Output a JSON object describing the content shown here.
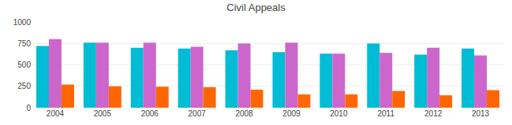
{
  "chart_data": {
    "type": "bar",
    "title": "Civil Appeals",
    "categories": [
      "2004",
      "2005",
      "2006",
      "2007",
      "2008",
      "2009",
      "2010",
      "2011",
      "2012",
      "2013"
    ],
    "series": [
      {
        "color": "#00bcd4",
        "values": [
          720,
          760,
          700,
          690,
          670,
          650,
          630,
          750,
          620,
          690
        ]
      },
      {
        "color": "#cc66cc",
        "values": [
          800,
          760,
          760,
          710,
          750,
          760,
          630,
          640,
          700,
          610
        ]
      },
      {
        "color": "#ff6600",
        "values": [
          270,
          250,
          245,
          240,
          210,
          155,
          155,
          195,
          145,
          205
        ]
      }
    ],
    "ylim": [
      0,
      1000
    ],
    "yticks": [
      0,
      250,
      500,
      750,
      1000
    ],
    "grid": true
  }
}
